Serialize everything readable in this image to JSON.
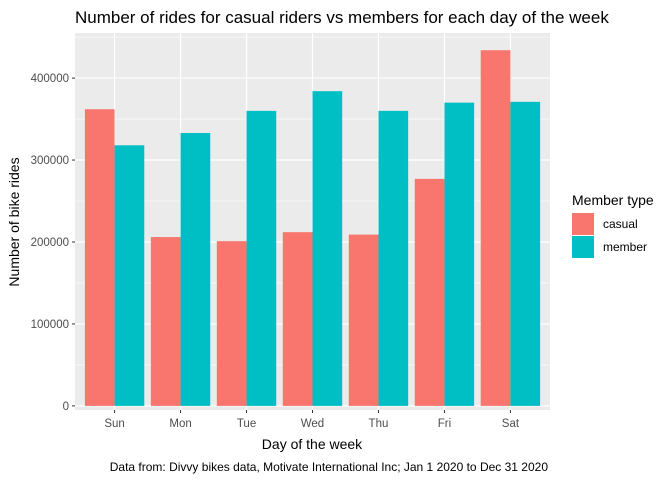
{
  "chart_data": {
    "type": "bar",
    "title": "Number of rides for casual riders vs members for each day of the week",
    "xlabel": "Day of the week",
    "ylabel": "Number of bike rides",
    "caption": "Data from: Divvy bikes data, Motivate International Inc; Jan 1 2020 to Dec 31 2020",
    "categories": [
      "Sun",
      "Mon",
      "Tue",
      "Wed",
      "Thu",
      "Fri",
      "Sat"
    ],
    "series": [
      {
        "name": "casual",
        "color": "#F8766D",
        "values": [
          362000,
          206000,
          201000,
          212000,
          209000,
          277000,
          434000
        ]
      },
      {
        "name": "member",
        "color": "#00BFC4",
        "values": [
          318000,
          333000,
          360000,
          384000,
          360000,
          370000,
          371000
        ]
      }
    ],
    "ylim": [
      -5000,
      455000
    ],
    "yticks": [
      0,
      100000,
      200000,
      300000,
      400000
    ],
    "ytick_labels": [
      "0",
      "100000",
      "200000",
      "300000",
      "400000"
    ],
    "legend": {
      "title": "Member type",
      "position": "right"
    },
    "grid": true,
    "panel_background": "#EBEBEB",
    "grid_color": "#FFFFFF"
  }
}
